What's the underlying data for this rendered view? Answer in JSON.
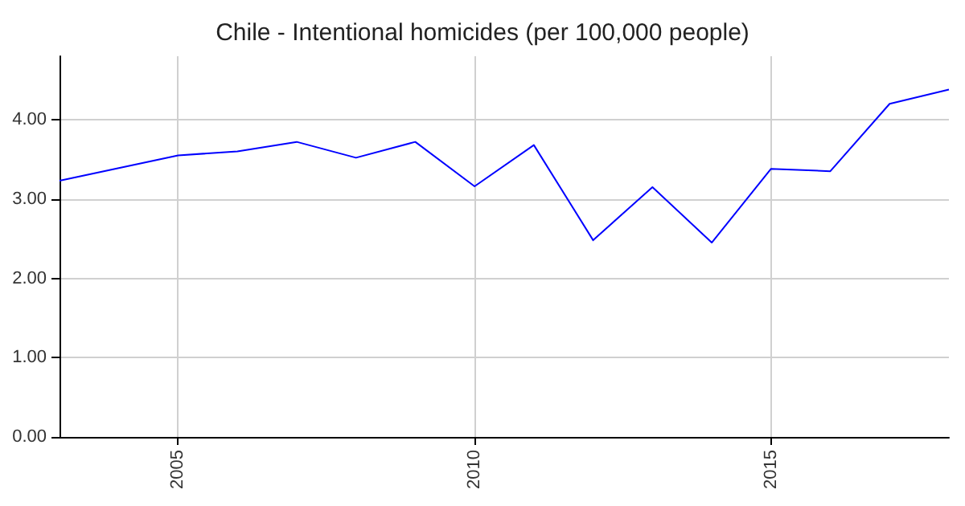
{
  "chart_data": {
    "type": "line",
    "title": "Chile - Intentional homicides (per 100,000 people)",
    "x": [
      2003,
      2004,
      2005,
      2006,
      2007,
      2008,
      2009,
      2010,
      2011,
      2012,
      2013,
      2014,
      2015,
      2016,
      2017,
      2018
    ],
    "series": [
      {
        "color": "#0000ff",
        "values": [
          3.23,
          3.39,
          3.55,
          3.6,
          3.72,
          3.52,
          3.72,
          3.16,
          3.68,
          2.48,
          3.15,
          2.45,
          3.38,
          3.35,
          4.2,
          4.38
        ]
      }
    ],
    "xlim": [
      2003,
      2018
    ],
    "xticks": [
      2005,
      2010,
      2015
    ],
    "ylim": [
      0,
      4.8
    ],
    "yticks": [
      {
        "value": 0,
        "label": "0.00"
      },
      {
        "value": 1,
        "label": "1.00"
      },
      {
        "value": 2,
        "label": "2.00"
      },
      {
        "value": 3,
        "label": "3.00"
      },
      {
        "value": 4,
        "label": "4.00"
      }
    ],
    "grid": true,
    "marker": "none",
    "line_style": "solid"
  }
}
